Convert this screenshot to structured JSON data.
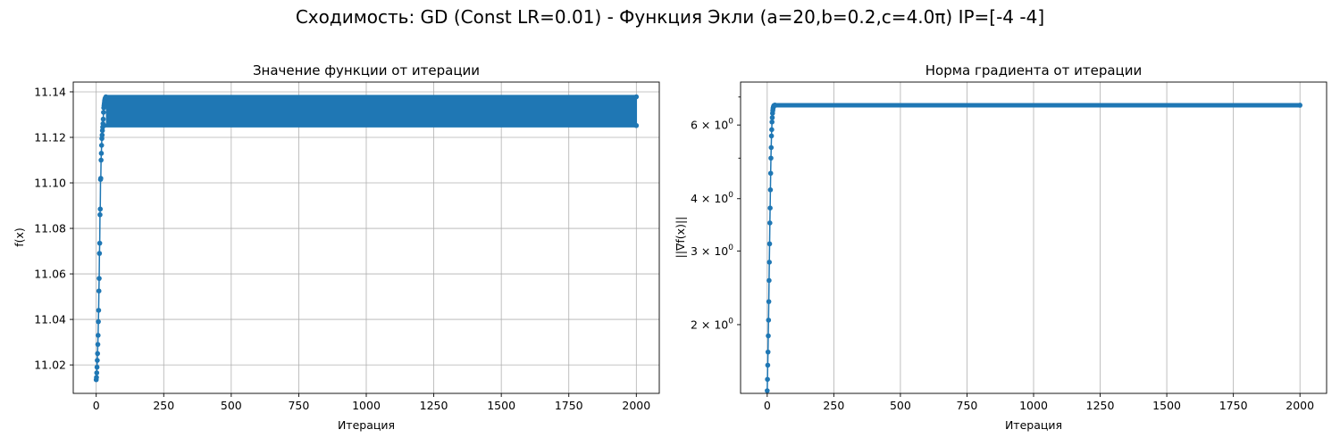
{
  "suptitle": "Сходимость: GD (Const LR=0.01) - Функция Экли (a=20,b=0.2,c=4.0π) IP=[-4 -4]",
  "colors": {
    "series": "#1f77b4",
    "grid": "#b0b0b0"
  },
  "chart_data": [
    {
      "type": "line",
      "title": "Значение функции от итерации",
      "xlabel": "Итерация",
      "ylabel": "f(x)",
      "xlim": [
        -85,
        2085
      ],
      "ylim": [
        11.0075,
        11.1443
      ],
      "xticks": [
        0,
        250,
        500,
        750,
        1000,
        1250,
        1500,
        1750,
        2000
      ],
      "yticks": [
        11.02,
        11.04,
        11.06,
        11.08,
        11.1,
        11.12,
        11.14
      ],
      "ytick_labels": [
        "11.02",
        "11.04",
        "11.06",
        "11.08",
        "11.10",
        "11.12",
        "11.14"
      ],
      "yscale": "linear",
      "grid": true,
      "marker": "o",
      "series": [
        {
          "x": [
            0,
            1,
            2,
            3,
            4,
            5,
            6,
            7,
            8,
            9,
            10,
            11,
            12,
            13,
            14,
            15,
            16,
            17,
            18,
            19,
            20,
            21,
            22,
            23,
            24,
            25,
            26,
            27,
            28,
            29,
            30,
            31,
            32,
            33,
            34,
            35
          ],
          "values": [
            11.0135,
            11.0145,
            11.0165,
            11.019,
            11.022,
            11.025,
            11.029,
            11.033,
            11.039,
            11.044,
            11.0525,
            11.058,
            11.069,
            11.0735,
            11.086,
            11.0885,
            11.1015,
            11.102,
            11.11,
            11.113,
            11.1165,
            11.1195,
            11.121,
            11.123,
            11.1245,
            11.126,
            11.128,
            11.131,
            11.133,
            11.134,
            11.135,
            11.136,
            11.1365,
            11.137,
            11.1373,
            11.1375
          ]
        }
      ],
      "oscillation": {
        "x_from": 36,
        "x_to": 2000,
        "high": 11.1378,
        "low": 11.1252
      }
    },
    {
      "type": "line",
      "title": "Норма градиента от итерации",
      "xlabel": "Итерация",
      "ylabel": "||∇f(x)||",
      "xlim": [
        -100,
        2100
      ],
      "ylim": [
        1.37,
        7.6
      ],
      "xticks": [
        0,
        250,
        500,
        750,
        1000,
        1250,
        1500,
        1750,
        2000
      ],
      "yscale": "log",
      "ymajor_ticks": [
        2,
        3,
        4,
        6
      ],
      "ymajor_labels": [
        {
          "base": "2 × 10",
          "exp": "0"
        },
        {
          "base": "3 × 10",
          "exp": "0"
        },
        {
          "base": "4 × 10",
          "exp": "0"
        },
        {
          "base": "6 × 10",
          "exp": "0"
        }
      ],
      "yminor_ticks": [
        5,
        7
      ],
      "grid": true,
      "marker": "o",
      "series": [
        {
          "x": [
            0,
            1,
            2,
            3,
            4,
            5,
            6,
            7,
            8,
            9,
            10,
            11,
            12,
            13,
            14,
            15,
            16,
            17,
            18,
            19,
            20,
            21,
            22,
            23,
            24,
            25,
            26,
            27,
            28,
            29,
            30,
            2000
          ],
          "values": [
            1.39,
            1.48,
            1.6,
            1.72,
            1.88,
            2.05,
            2.27,
            2.55,
            2.82,
            3.12,
            3.5,
            3.8,
            4.2,
            4.6,
            5.0,
            5.3,
            5.65,
            5.85,
            6.1,
            6.25,
            6.4,
            6.5,
            6.58,
            6.62,
            6.65,
            6.67,
            6.68,
            6.685,
            6.69,
            6.69,
            6.69,
            6.69
          ]
        }
      ]
    }
  ]
}
